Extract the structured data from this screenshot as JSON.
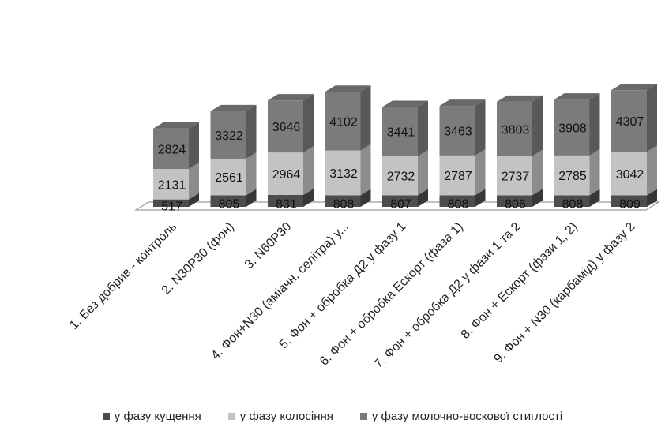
{
  "chart_data": {
    "type": "bar",
    "stacked": true,
    "three_d": true,
    "categories": [
      "1. Без добрив - контроль",
      "2. N30P30  (фон)",
      "3. N60P30",
      "4. Фон+N30 (аміачн. селітра) у...",
      "5. Фон + обробка Д2 у фазу 1",
      "6. Фон + обробка Ескорт (фаза 1)",
      "7. Фон + обробка Д2 у фази 1 та 2",
      "8. Фон + Ескорт (фази 1, 2)",
      "9. Фон + N30 (карбамід) у фазу 2"
    ],
    "series": [
      {
        "name": "у фазу кущення",
        "values": [
          517,
          805,
          831,
          808,
          807,
          808,
          806,
          808,
          809
        ],
        "color": "#4d4d4d"
      },
      {
        "name": "у фазу колосіння",
        "values": [
          2131,
          2561,
          2964,
          3132,
          2732,
          2787,
          2737,
          2785,
          3042
        ],
        "color": "#c3c3c3"
      },
      {
        "name": "у фазу молочно-воскової стиглості",
        "values": [
          2824,
          3322,
          3646,
          4102,
          3441,
          3463,
          3803,
          3908,
          4307
        ],
        "color": "#7b7b7b"
      }
    ],
    "data_labels": true,
    "legend_position": "bottom",
    "grid": false
  }
}
